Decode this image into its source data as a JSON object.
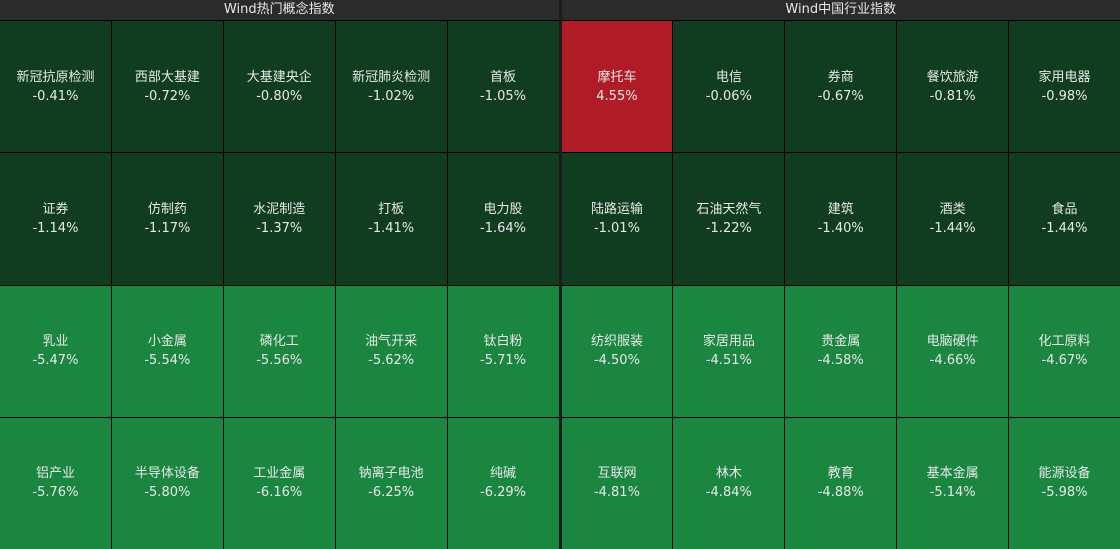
{
  "panels": [
    {
      "title": "Wind热门概念指数",
      "tiles": [
        {
          "name": "新冠抗原检测",
          "change": "-0.41%",
          "color": "#103d1f"
        },
        {
          "name": "西部大基建",
          "change": "-0.72%",
          "color": "#103d1f"
        },
        {
          "name": "大基建央企",
          "change": "-0.80%",
          "color": "#103d1f"
        },
        {
          "name": "新冠肺炎检测",
          "change": "-1.02%",
          "color": "#103d1f"
        },
        {
          "name": "首板",
          "change": "-1.05%",
          "color": "#103d1f"
        },
        {
          "name": "证券",
          "change": "-1.14%",
          "color": "#103d1f"
        },
        {
          "name": "仿制药",
          "change": "-1.17%",
          "color": "#103d1f"
        },
        {
          "name": "水泥制造",
          "change": "-1.37%",
          "color": "#103d1f"
        },
        {
          "name": "打板",
          "change": "-1.41%",
          "color": "#103d1f"
        },
        {
          "name": "电力股",
          "change": "-1.64%",
          "color": "#103d1f"
        },
        {
          "name": "乳业",
          "change": "-5.47%",
          "color": "#1a8640"
        },
        {
          "name": "小金属",
          "change": "-5.54%",
          "color": "#1a8640"
        },
        {
          "name": "磷化工",
          "change": "-5.56%",
          "color": "#1a8640"
        },
        {
          "name": "油气开采",
          "change": "-5.62%",
          "color": "#1a8640"
        },
        {
          "name": "钛白粉",
          "change": "-5.71%",
          "color": "#1a8640"
        },
        {
          "name": "铝产业",
          "change": "-5.76%",
          "color": "#1a8640"
        },
        {
          "name": "半导体设备",
          "change": "-5.80%",
          "color": "#1a8640"
        },
        {
          "name": "工业金属",
          "change": "-6.16%",
          "color": "#1a8640"
        },
        {
          "name": "钠离子电池",
          "change": "-6.25%",
          "color": "#1a8640"
        },
        {
          "name": "纯碱",
          "change": "-6.29%",
          "color": "#1a8640"
        }
      ]
    },
    {
      "title": "Wind中国行业指数",
      "tiles": [
        {
          "name": "摩托车",
          "change": "4.55%",
          "color": "#b01c26"
        },
        {
          "name": "电信",
          "change": "-0.06%",
          "color": "#103d1f"
        },
        {
          "name": "券商",
          "change": "-0.67%",
          "color": "#103d1f"
        },
        {
          "name": "餐饮旅游",
          "change": "-0.81%",
          "color": "#103d1f"
        },
        {
          "name": "家用电器",
          "change": "-0.98%",
          "color": "#103d1f"
        },
        {
          "name": "陆路运输",
          "change": "-1.01%",
          "color": "#103d1f"
        },
        {
          "name": "石油天然气",
          "change": "-1.22%",
          "color": "#103d1f"
        },
        {
          "name": "建筑",
          "change": "-1.40%",
          "color": "#103d1f"
        },
        {
          "name": "酒类",
          "change": "-1.44%",
          "color": "#103d1f"
        },
        {
          "name": "食品",
          "change": "-1.44%",
          "color": "#103d1f"
        },
        {
          "name": "纺织服装",
          "change": "-4.50%",
          "color": "#1a8640"
        },
        {
          "name": "家居用品",
          "change": "-4.51%",
          "color": "#1a8640"
        },
        {
          "name": "贵金属",
          "change": "-4.58%",
          "color": "#1a8640"
        },
        {
          "name": "电脑硬件",
          "change": "-4.66%",
          "color": "#1a8640"
        },
        {
          "name": "化工原料",
          "change": "-4.67%",
          "color": "#1a8640"
        },
        {
          "name": "互联网",
          "change": "-4.81%",
          "color": "#1a8640"
        },
        {
          "name": "林木",
          "change": "-4.84%",
          "color": "#1a8640"
        },
        {
          "name": "教育",
          "change": "-4.88%",
          "color": "#1a8640"
        },
        {
          "name": "基本金属",
          "change": "-5.14%",
          "color": "#1a8640"
        },
        {
          "name": "能源设备",
          "change": "-5.98%",
          "color": "#1a8640"
        }
      ]
    }
  ]
}
